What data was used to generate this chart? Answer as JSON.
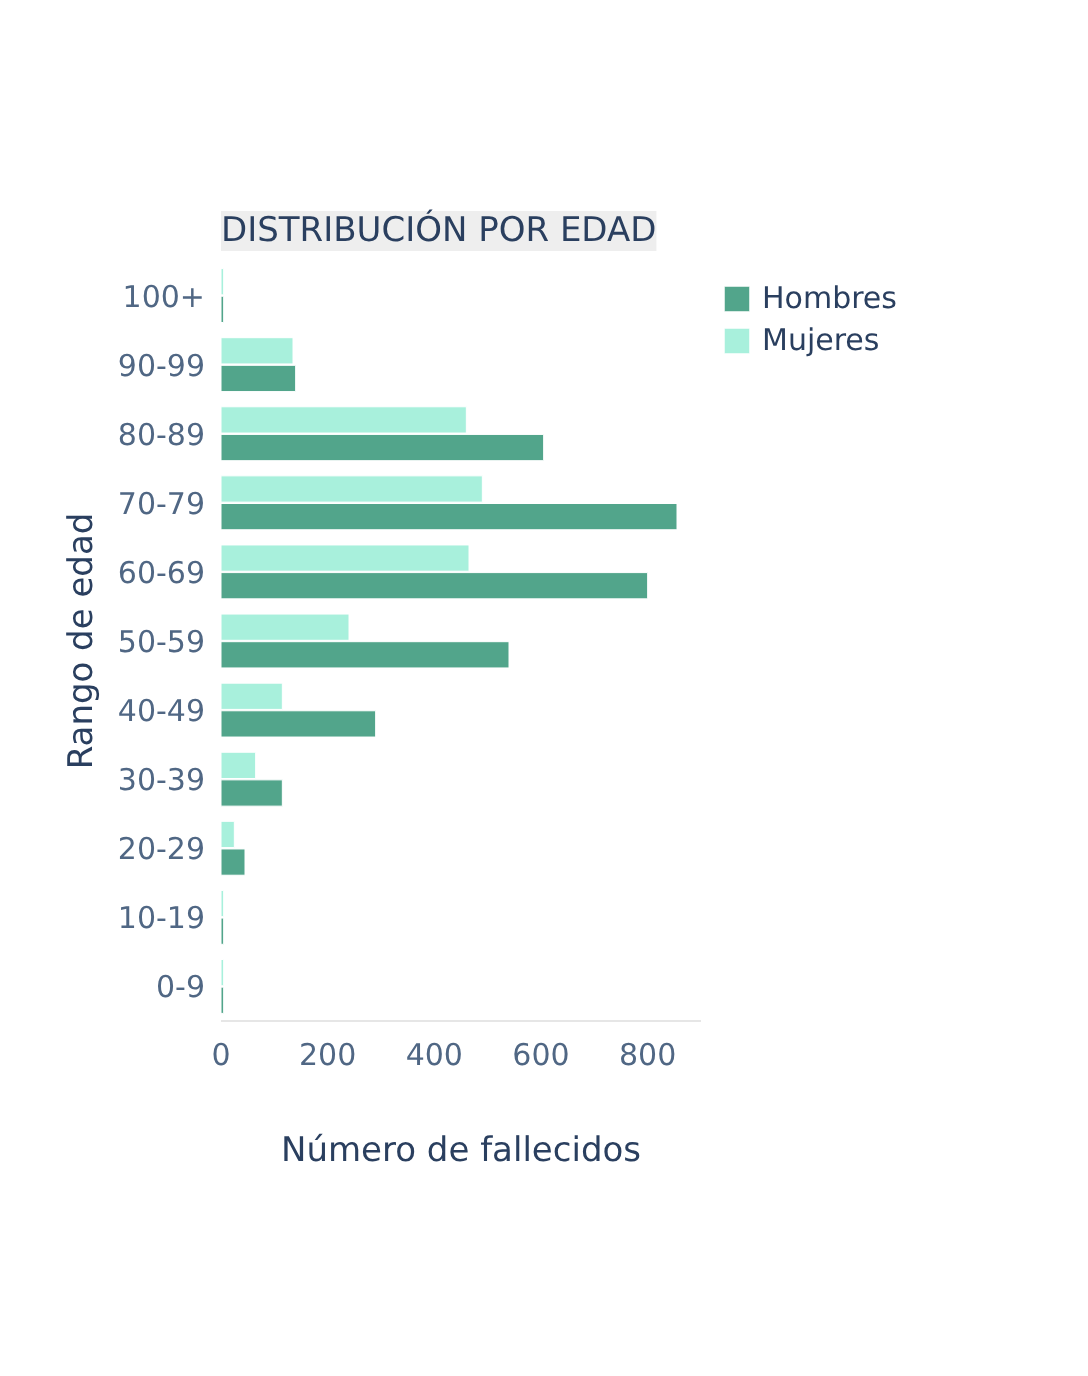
{
  "chart_data": {
    "type": "bar",
    "orientation": "horizontal",
    "title": "DISTRIBUCIÓN POR EDAD",
    "xlabel": "Número de fallecidos",
    "ylabel": "Rango de edad",
    "categories": [
      "100+",
      "90-99",
      "80-89",
      "70-79",
      "60-69",
      "50-59",
      "40-49",
      "30-39",
      "20-29",
      "10-19",
      "0-9"
    ],
    "series": [
      {
        "name": "Hombres",
        "color": "#52a58b",
        "values": [
          5,
          140,
          605,
          855,
          800,
          540,
          290,
          115,
          45,
          5,
          5
        ]
      },
      {
        "name": "Mujeres",
        "color": "#a8f0dc",
        "values": [
          5,
          135,
          460,
          490,
          465,
          240,
          115,
          65,
          25,
          5,
          5
        ]
      }
    ],
    "xlim": [
      0,
      900
    ],
    "xticks": [
      0,
      200,
      400,
      600,
      800
    ],
    "legend": "top right"
  }
}
